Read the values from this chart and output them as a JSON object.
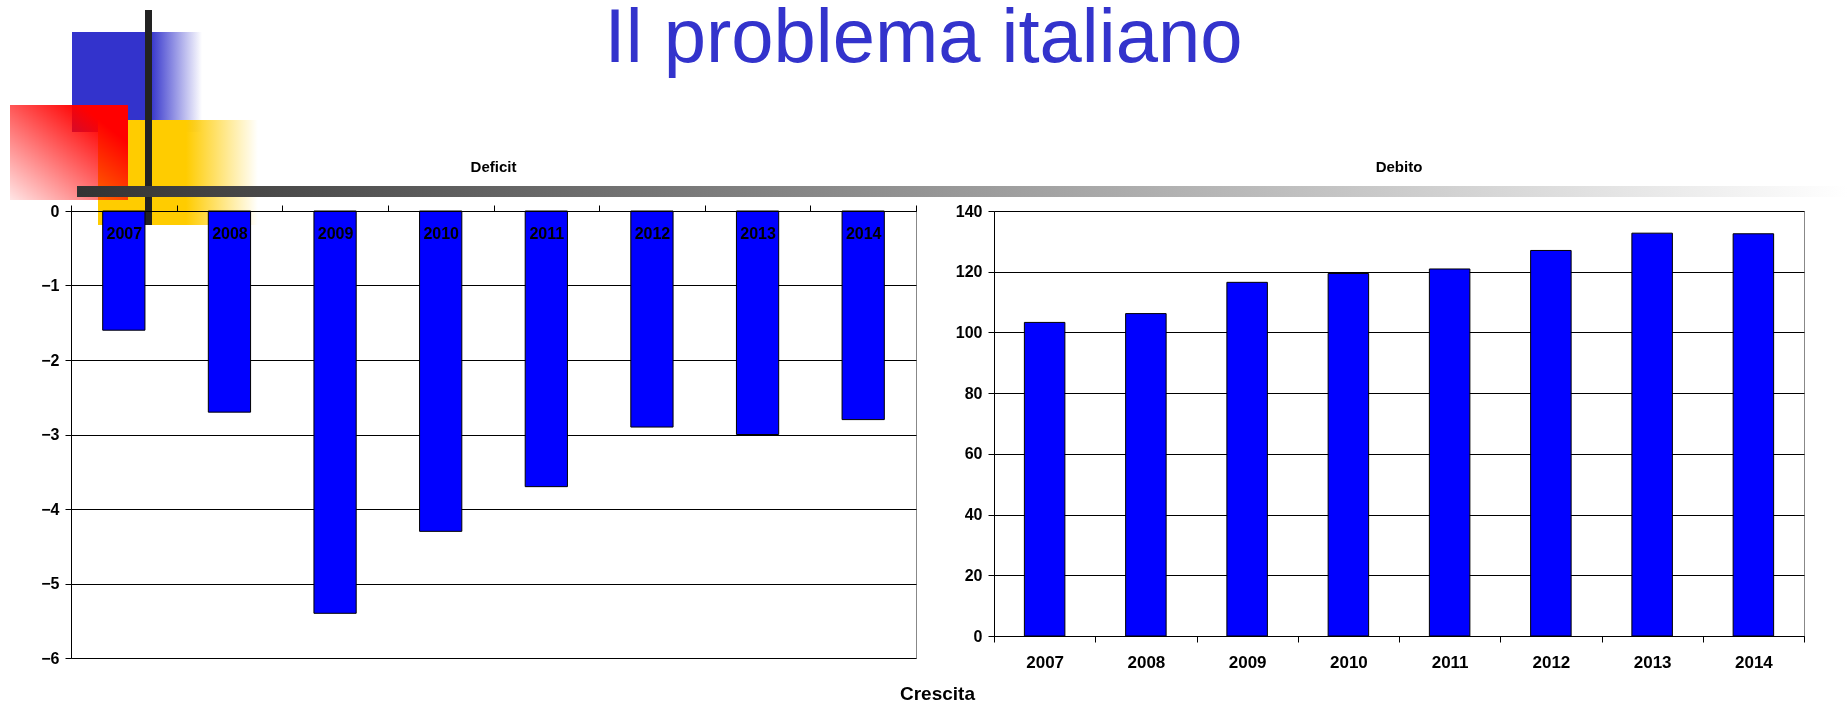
{
  "chart_data": [
    {
      "type": "bar",
      "title": "Deficit",
      "annotations": [
        "Il problema italiano"
      ],
      "categories": [
        "2007",
        "2008",
        "2009",
        "2010",
        "2011",
        "2012",
        "2013",
        "2014"
      ],
      "values": [
        -1.6,
        -2.7,
        -5.4,
        -4.3,
        -3.7,
        -2.9,
        -3.0,
        -2.8
      ],
      "color": "#0000ff",
      "ylim": [
        -6,
        0
      ],
      "yticks": [
        -6,
        -5,
        -4,
        -3,
        -2,
        -1,
        0
      ],
      "grid": "y"
    },
    {
      "type": "bar",
      "title": "Debito",
      "annotations": [
        "Crescita"
      ],
      "categories": [
        "2007",
        "2008",
        "2009",
        "2010",
        "2011",
        "2012",
        "2013",
        "2014"
      ],
      "values": [
        103.3,
        106.2,
        116.5,
        119.4,
        120.9,
        127.0,
        132.7,
        132.5
      ],
      "color": "#0000ff",
      "ylim": [
        0,
        140
      ],
      "yticks": [
        0,
        20,
        40,
        60,
        80,
        100,
        120,
        140
      ],
      "grid": "y"
    }
  ]
}
